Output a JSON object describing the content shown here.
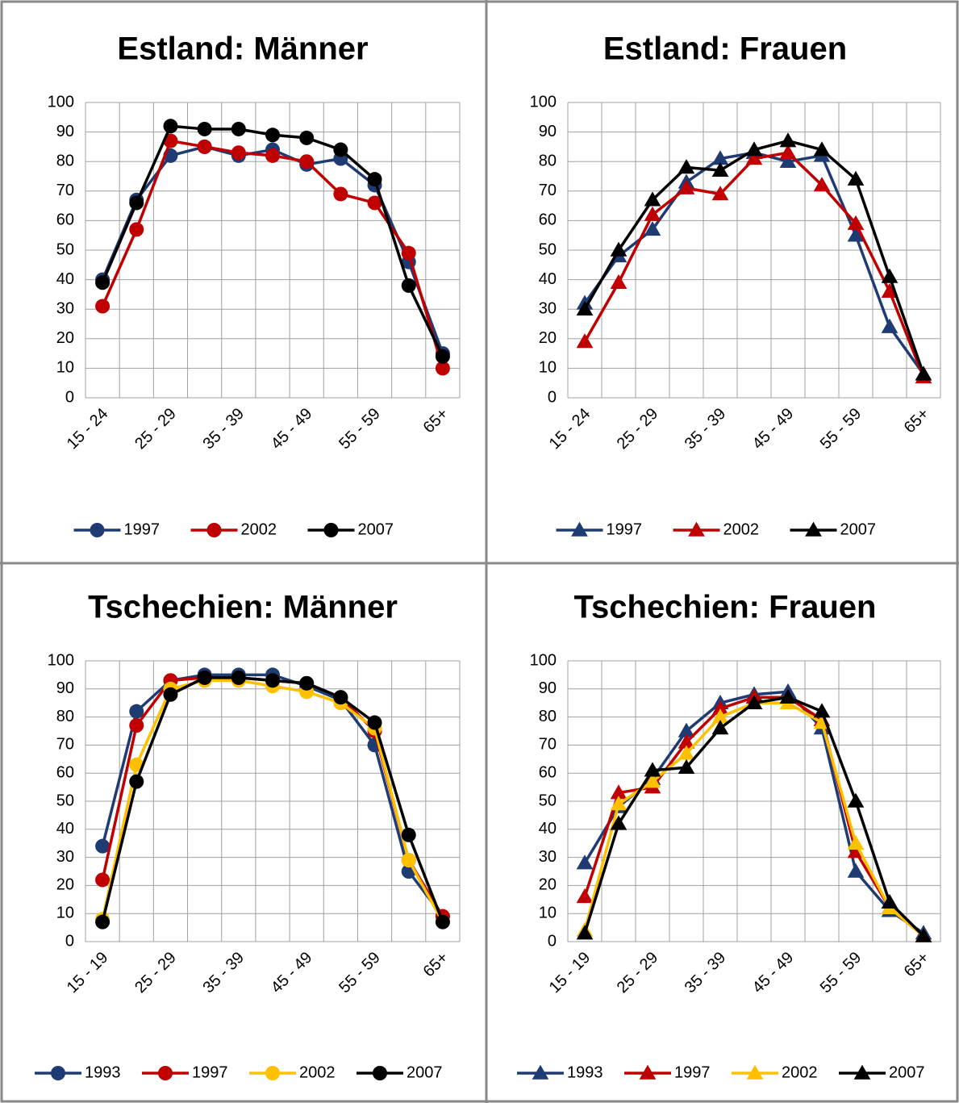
{
  "chart_data": [
    {
      "type": "line",
      "title": "Estland: Männer",
      "marker": "circle",
      "categories": [
        "15 - 24",
        null,
        "25 - 29",
        null,
        "35 - 39",
        null,
        "45 - 49",
        null,
        "55 - 59",
        null,
        "65+"
      ],
      "ylim": [
        0,
        100
      ],
      "yticks": [
        0,
        10,
        20,
        30,
        40,
        50,
        60,
        70,
        80,
        90,
        100
      ],
      "grid": true,
      "series": [
        {
          "name": "1997",
          "color": "#1f3b73",
          "values": [
            40,
            67,
            82,
            85,
            82,
            84,
            79,
            81,
            72,
            46,
            15
          ]
        },
        {
          "name": "2002",
          "color": "#c00000",
          "values": [
            31,
            57,
            87,
            85,
            83,
            82,
            80,
            69,
            66,
            49,
            10
          ]
        },
        {
          "name": "2007",
          "color": "#000000",
          "values": [
            39,
            66,
            92,
            91,
            91,
            89,
            88,
            84,
            74,
            38,
            14
          ]
        }
      ]
    },
    {
      "type": "line",
      "title": "Estland: Frauen",
      "marker": "triangle",
      "categories": [
        "15 - 24",
        null,
        "25 - 29",
        null,
        "35 - 39",
        null,
        "45 - 49",
        null,
        "55 - 59",
        null,
        "65+"
      ],
      "ylim": [
        0,
        100
      ],
      "yticks": [
        0,
        10,
        20,
        30,
        40,
        50,
        60,
        70,
        80,
        90,
        100
      ],
      "grid": true,
      "series": [
        {
          "name": "1997",
          "color": "#1f3b73",
          "values": [
            32,
            48,
            57,
            73,
            81,
            83,
            80,
            82,
            55,
            24,
            8
          ]
        },
        {
          "name": "2002",
          "color": "#c00000",
          "values": [
            19,
            39,
            62,
            71,
            69,
            81,
            83,
            72,
            59,
            36,
            7
          ]
        },
        {
          "name": "2007",
          "color": "#000000",
          "values": [
            30,
            50,
            67,
            78,
            77,
            84,
            87,
            84,
            74,
            41,
            8
          ]
        }
      ]
    },
    {
      "type": "line",
      "title": "Tschechien: Männer",
      "marker": "circle",
      "categories": [
        "15 - 19",
        null,
        "25 - 29",
        null,
        "35 - 39",
        null,
        "45 - 49",
        null,
        "55 - 59",
        null,
        "65+"
      ],
      "ylim": [
        0,
        100
      ],
      "yticks": [
        0,
        10,
        20,
        30,
        40,
        50,
        60,
        70,
        80,
        90,
        100
      ],
      "grid": true,
      "series": [
        {
          "name": "1993",
          "color": "#1f3b73",
          "values": [
            34,
            82,
            93,
            95,
            95,
            95,
            91,
            86,
            70,
            25,
            9
          ]
        },
        {
          "name": "1997",
          "color": "#c00000",
          "values": [
            22,
            77,
            93,
            94,
            94,
            93,
            92,
            87,
            75,
            29,
            9
          ]
        },
        {
          "name": "2002",
          "color": "#ffc000",
          "values": [
            8,
            63,
            90,
            93,
            93,
            91,
            89,
            85,
            76,
            29,
            7
          ]
        },
        {
          "name": "2007",
          "color": "#000000",
          "values": [
            7,
            57,
            88,
            94,
            94,
            93,
            92,
            87,
            78,
            38,
            7
          ]
        }
      ]
    },
    {
      "type": "line",
      "title": "Tschechien: Frauen",
      "marker": "triangle",
      "categories": [
        "15 - 19",
        null,
        "25 - 29",
        null,
        "35 - 39",
        null,
        "45 - 49",
        null,
        "55 - 59",
        null,
        "65+"
      ],
      "ylim": [
        0,
        100
      ],
      "yticks": [
        0,
        10,
        20,
        30,
        40,
        50,
        60,
        70,
        80,
        90,
        100
      ],
      "grid": true,
      "series": [
        {
          "name": "1993",
          "color": "#1f3b73",
          "values": [
            28,
            48,
            58,
            75,
            85,
            88,
            89,
            76,
            25,
            11,
            3
          ]
        },
        {
          "name": "1997",
          "color": "#c00000",
          "values": [
            16,
            53,
            55,
            71,
            83,
            87,
            87,
            79,
            32,
            12,
            2
          ]
        },
        {
          "name": "2002",
          "color": "#ffc000",
          "values": [
            4,
            49,
            57,
            67,
            80,
            85,
            85,
            78,
            35,
            12,
            2
          ]
        },
        {
          "name": "2007",
          "color": "#000000",
          "values": [
            3,
            42,
            61,
            62,
            76,
            85,
            87,
            82,
            50,
            14,
            2
          ]
        }
      ]
    }
  ]
}
